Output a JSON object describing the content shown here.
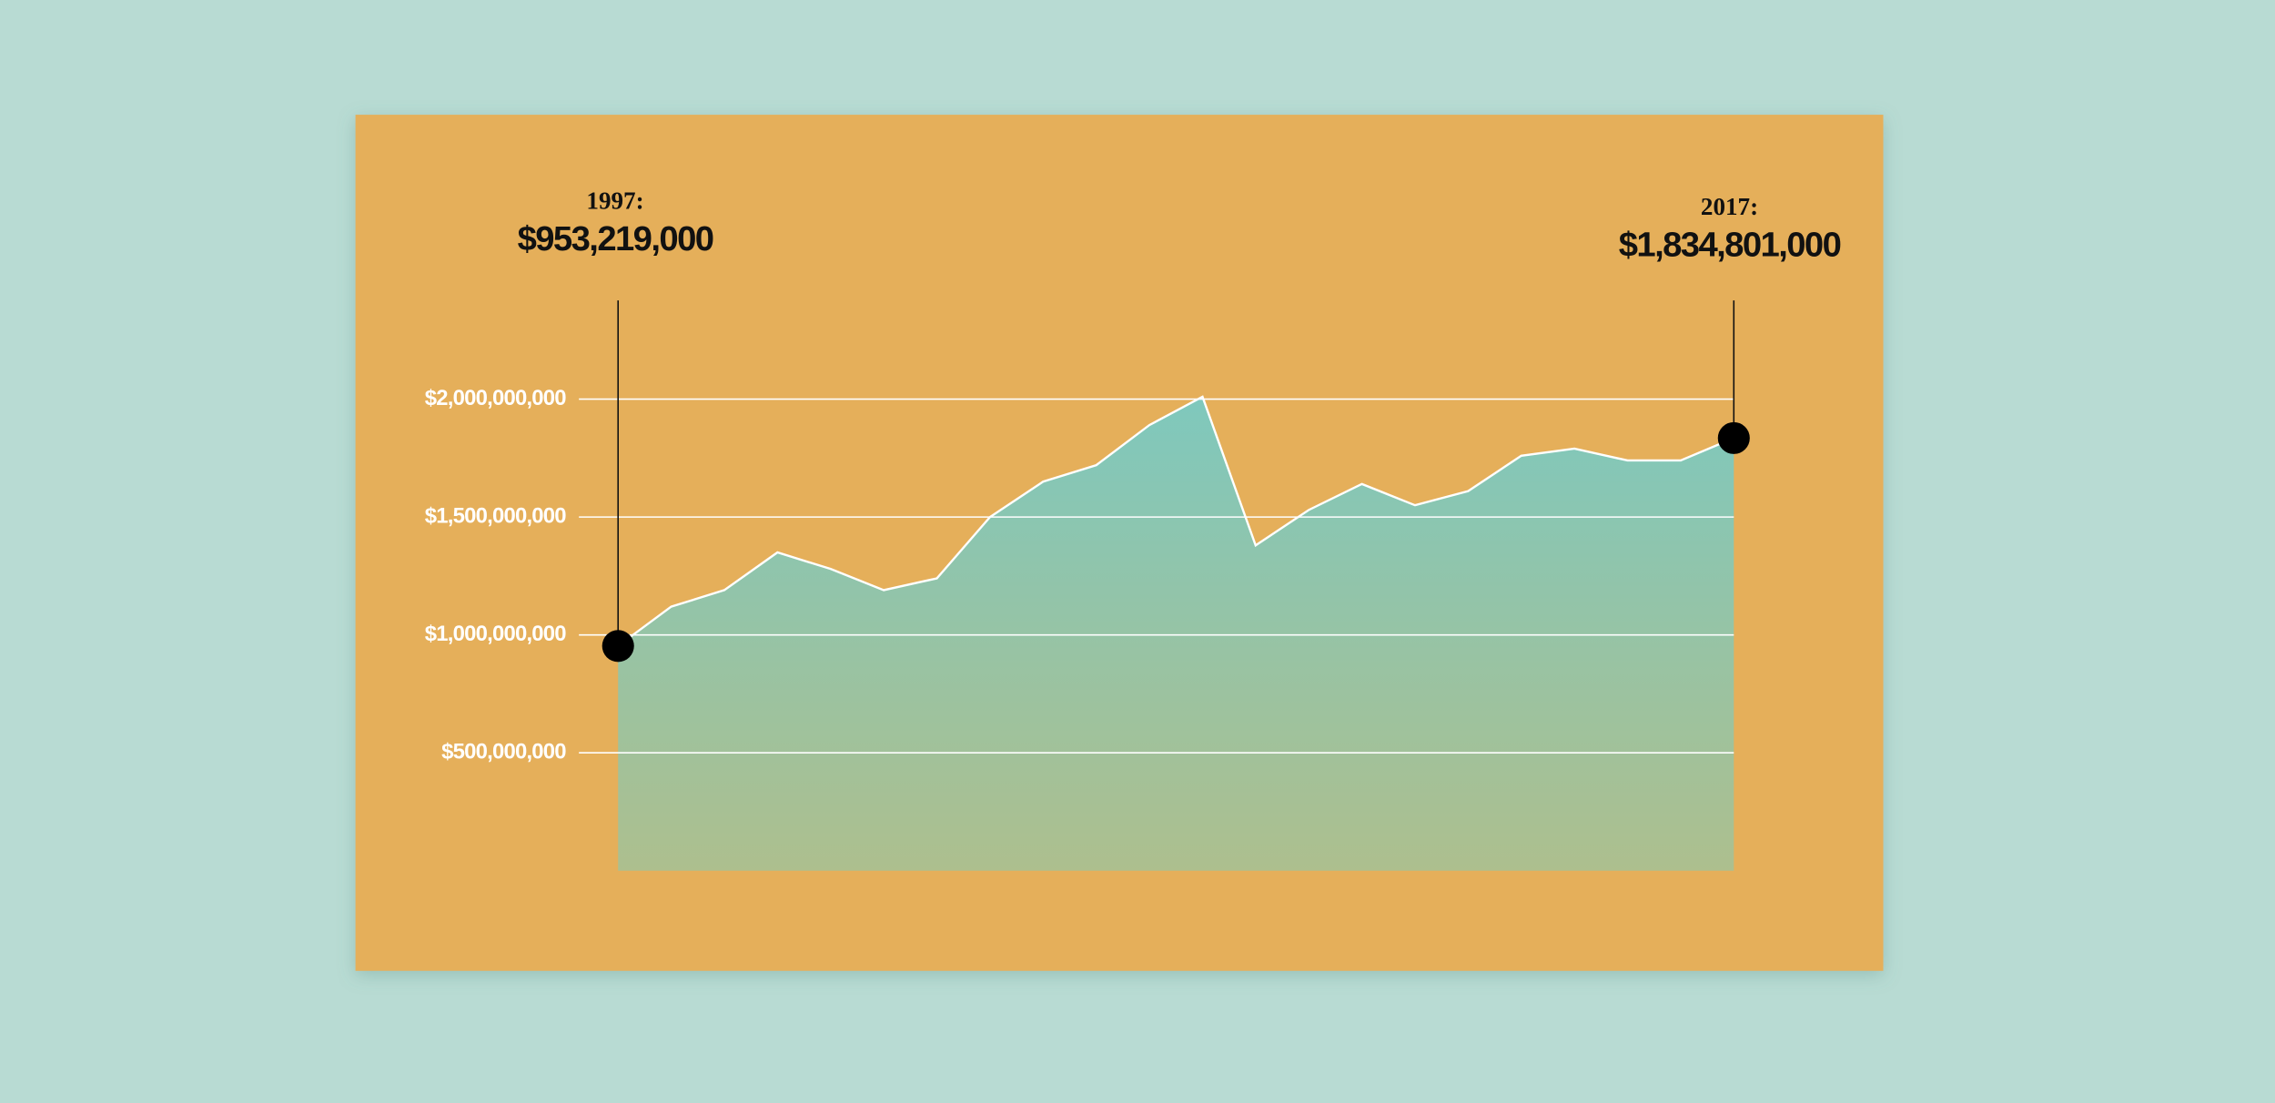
{
  "chart_data": {
    "type": "area",
    "categories": [
      "1997:",
      null,
      null,
      null,
      null,
      null,
      null,
      null,
      null,
      null,
      null,
      null,
      null,
      null,
      null,
      null,
      null,
      null,
      null,
      null,
      null,
      "2017:"
    ],
    "values": [
      953219000,
      1120000000,
      1190000000,
      1350000000,
      1280000000,
      1190000000,
      1240000000,
      1500000000,
      1650000000,
      1720000000,
      1890000000,
      2010000000,
      1380000000,
      1530000000,
      1640000000,
      1550000000,
      1610000000,
      1760000000,
      1790000000,
      1740000000,
      1740000000,
      1834801000
    ],
    "value_labels": [
      "$953,219,000",
      null,
      null,
      null,
      null,
      null,
      null,
      null,
      null,
      null,
      null,
      null,
      null,
      null,
      null,
      null,
      null,
      null,
      null,
      null,
      null,
      "$1,834,801,000"
    ],
    "color": "#80c8bd",
    "ylim": [
      0,
      2400000000
    ],
    "yticks": [
      {
        "value": 500000000,
        "label": "$500,000,000"
      },
      {
        "value": 1000000000,
        "label": "$1,000,000,000"
      },
      {
        "value": 1500000000,
        "label": "$1,500,000,000"
      },
      {
        "value": 2000000000,
        "label": "$2,000,000,000"
      }
    ],
    "grid": true
  }
}
